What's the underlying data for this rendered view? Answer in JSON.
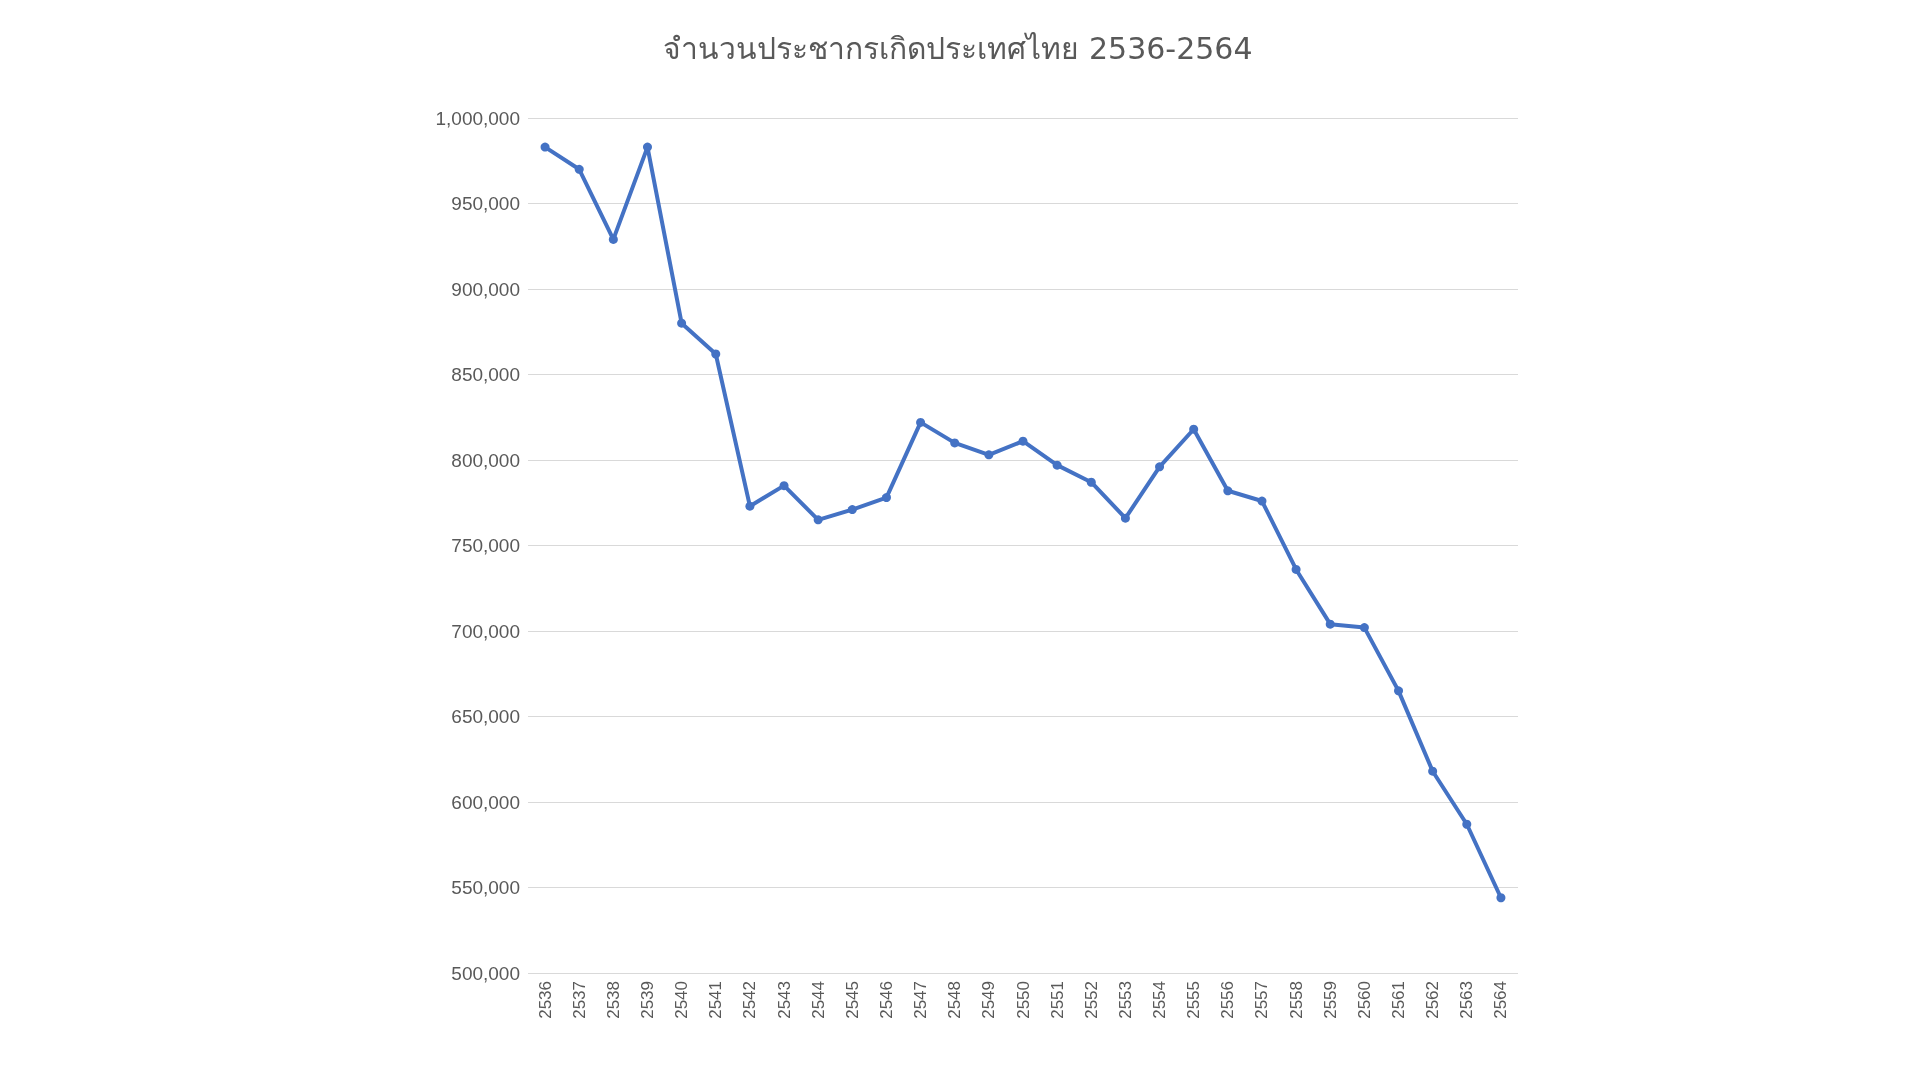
{
  "chart_data": {
    "type": "line",
    "title": "จำนวนประชากรเกิดประเทศไทย 2536-2564",
    "categories": [
      "2536",
      "2537",
      "2538",
      "2539",
      "2540",
      "2541",
      "2542",
      "2543",
      "2544",
      "2545",
      "2546",
      "2547",
      "2548",
      "2549",
      "2550",
      "2551",
      "2552",
      "2553",
      "2554",
      "2555",
      "2556",
      "2557",
      "2558",
      "2559",
      "2560",
      "2561",
      "2562",
      "2563",
      "2564"
    ],
    "series": [
      {
        "color": "#4472c4",
        "values": [
          983000,
          970000,
          929000,
          983000,
          880000,
          862000,
          773000,
          785000,
          765000,
          771000,
          778000,
          822000,
          810000,
          803000,
          811000,
          797000,
          787000,
          766000,
          796000,
          818000,
          782000,
          776000,
          736000,
          704000,
          702000,
          665000,
          618000,
          587000,
          544000
        ]
      }
    ],
    "ylim": [
      500000,
      1000000
    ],
    "yticks": [
      {
        "value": 500000,
        "label": "500,000"
      },
      {
        "value": 550000,
        "label": "550,000"
      },
      {
        "value": 600000,
        "label": "600,000"
      },
      {
        "value": 650000,
        "label": "650,000"
      },
      {
        "value": 700000,
        "label": "700,000"
      },
      {
        "value": 750000,
        "label": "750,000"
      },
      {
        "value": 800000,
        "label": "800,000"
      },
      {
        "value": 850000,
        "label": "850,000"
      },
      {
        "value": 900000,
        "label": "900,000"
      },
      {
        "value": 950000,
        "label": "950,000"
      },
      {
        "value": 1000000,
        "label": "1,000,000"
      }
    ],
    "grid": "y",
    "marker": "circle",
    "line_style": "solid"
  }
}
